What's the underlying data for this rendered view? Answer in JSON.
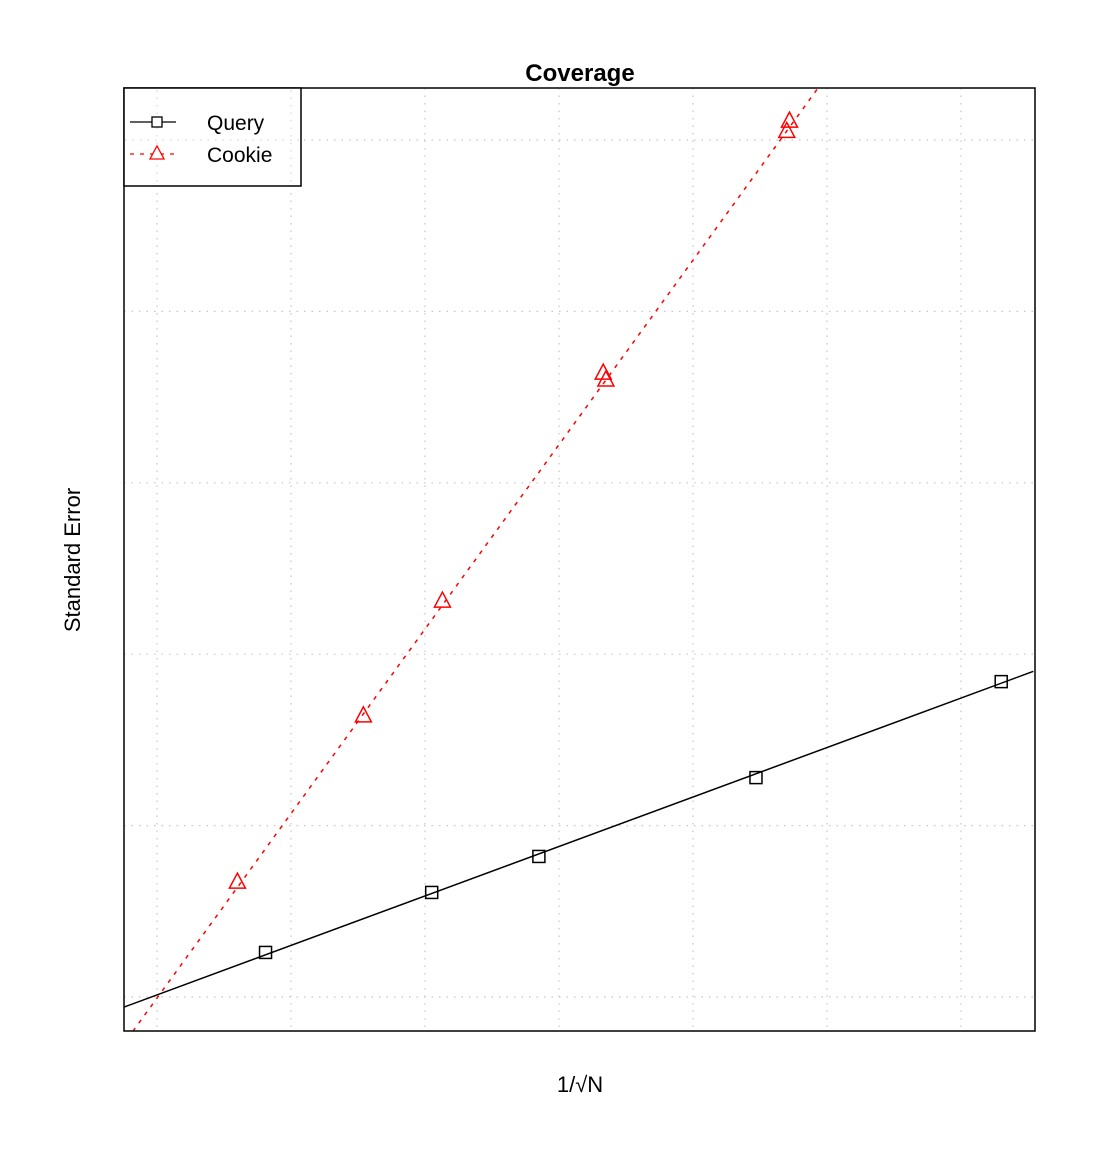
{
  "chart_data": {
    "type": "line",
    "title": "Coverage",
    "xlabel": "1/√N",
    "ylabel": "Standard Error",
    "grid": true,
    "tick_labels_shown": false,
    "legend_position": "top-left",
    "xlim": [
      -0.25,
      6.54
    ],
    "ylim": [
      -0.2,
      5.2
    ],
    "x_gridlines": [
      0,
      1,
      2,
      3,
      4,
      5,
      6
    ],
    "y_gridlines": [
      0,
      1,
      2,
      3,
      4,
      5
    ],
    "series": [
      {
        "name": "Query",
        "color": "#000000",
        "line_style": "solid",
        "marker": "square",
        "x": [
          0.81,
          2.05,
          2.85,
          4.47,
          6.3
        ],
        "y": [
          0.26,
          0.61,
          0.82,
          1.28,
          1.84
        ],
        "fit_line": {
          "x": [
            -0.25,
            6.54
          ],
          "y": [
            -0.06,
            1.9
          ]
        }
      },
      {
        "name": "Cookie",
        "color": "#ff0000",
        "line_style": "dashed",
        "marker": "triangle",
        "x": [
          0.6,
          1.54,
          2.13,
          3.33,
          3.35,
          4.7,
          4.72
        ],
        "y": [
          0.67,
          1.64,
          2.31,
          3.64,
          3.6,
          5.05,
          5.11
        ],
        "fit_line": {
          "x": [
            -0.18,
            4.93
          ],
          "y": [
            -0.2,
            5.3
          ]
        }
      }
    ]
  },
  "legend": {
    "items": [
      {
        "label": "Query",
        "color": "#000000"
      },
      {
        "label": "Cookie",
        "color": "#ff0000"
      }
    ]
  }
}
